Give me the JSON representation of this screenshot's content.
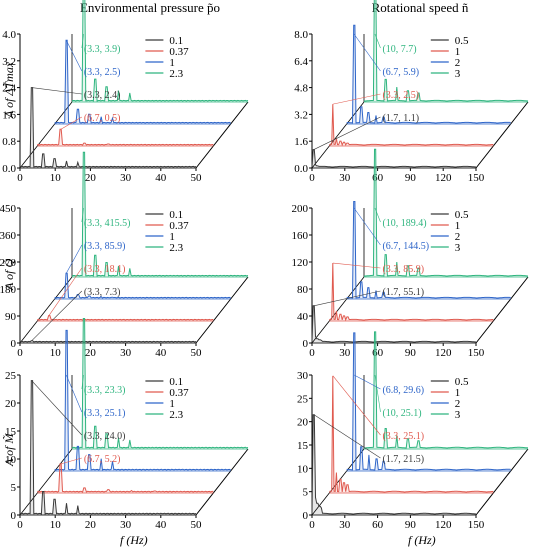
{
  "columns": [
    {
      "title": "Environmental pressure p̃o"
    },
    {
      "title": "Rotational speed ñ"
    }
  ],
  "row_ylabels": [
    "A of ΔT̃max",
    "A of Q̃",
    "A of M̃"
  ],
  "xlabel": "f (Hz)",
  "colors": {
    "s1": "#3a3a3a",
    "s2": "#e05a4f",
    "s3": "#2f66c9",
    "s4": "#2fb57f"
  },
  "chart_data": [
    {
      "type": "line",
      "panel": "a1",
      "xlim": [
        0,
        50
      ],
      "ylim": [
        0,
        4.0
      ],
      "xticks": [
        0,
        10,
        20,
        30,
        40,
        50
      ],
      "yticks": [
        0.0,
        0.8,
        1.6,
        2.4,
        3.2,
        4.0
      ],
      "ytick_labels": [
        "0.0",
        "0.8",
        "1.6",
        "2.4",
        "3.2",
        "4.0"
      ],
      "series": [
        {
          "name": "0.1",
          "peak_x": 3.3,
          "peak_y": 2.4
        },
        {
          "name": "0.37",
          "peak_x": 6.7,
          "peak_y": 0.5
        },
        {
          "name": "1",
          "peak_x": 3.3,
          "peak_y": 2.5
        },
        {
          "name": "2.3",
          "peak_x": 3.3,
          "peak_y": 3.9
        }
      ],
      "annotations": [
        {
          "text": "(3.3, 3.9)",
          "series": 3
        },
        {
          "text": "(3.3, 2.5)",
          "series": 2
        },
        {
          "text": "(3.3, 2.4)",
          "series": 0
        },
        {
          "text": "(6.7, 0.5)",
          "series": 1
        }
      ]
    },
    {
      "type": "line",
      "panel": "b1",
      "xlim": [
        0,
        150
      ],
      "ylim": [
        0,
        8.0
      ],
      "xticks": [
        0,
        30,
        60,
        90,
        120,
        150
      ],
      "yticks": [
        0.0,
        1.6,
        3.2,
        4.8,
        6.4,
        8.0
      ],
      "ytick_labels": [
        "0.0",
        "1.6",
        "3.2",
        "4.8",
        "6.4",
        "8.0"
      ],
      "series": [
        {
          "name": "0.5",
          "peak_x": 1.7,
          "peak_y": 1.1
        },
        {
          "name": "1",
          "peak_x": 3.3,
          "peak_y": 2.5
        },
        {
          "name": "2",
          "peak_x": 6.7,
          "peak_y": 5.9
        },
        {
          "name": "3",
          "peak_x": 10,
          "peak_y": 7.7
        }
      ],
      "annotations": [
        {
          "text": "(10, 7.7)",
          "series": 3
        },
        {
          "text": "(6.7, 5.9)",
          "series": 2
        },
        {
          "text": "(3.3, 2.5)",
          "series": 1
        },
        {
          "text": "(1.7, 1.1)",
          "series": 0
        }
      ]
    },
    {
      "type": "line",
      "panel": "a2",
      "xlim": [
        0,
        50
      ],
      "ylim": [
        0,
        450
      ],
      "xticks": [
        0,
        10,
        20,
        30,
        40,
        50
      ],
      "yticks": [
        0,
        90,
        180,
        270,
        360,
        450
      ],
      "ytick_labels": [
        "0",
        "90",
        "180",
        "270",
        "360",
        "450"
      ],
      "series": [
        {
          "name": "0.1",
          "peak_x": 3.3,
          "peak_y": 7.3
        },
        {
          "name": "0.37",
          "peak_x": 3.3,
          "peak_y": 18.1
        },
        {
          "name": "1",
          "peak_x": 3.3,
          "peak_y": 85.9
        },
        {
          "name": "2.3",
          "peak_x": 3.3,
          "peak_y": 415.5
        }
      ],
      "annotations": [
        {
          "text": "(3.3, 415.5)",
          "series": 3
        },
        {
          "text": "(3.3, 85.9)",
          "series": 2
        },
        {
          "text": "(3.3, 18.1)",
          "series": 1
        },
        {
          "text": "(3.3, 7.3)",
          "series": 0
        }
      ]
    },
    {
      "type": "line",
      "panel": "b2",
      "xlim": [
        0,
        150
      ],
      "ylim": [
        0,
        200
      ],
      "xticks": [
        0,
        30,
        60,
        90,
        120,
        150
      ],
      "yticks": [
        0,
        40,
        80,
        120,
        160,
        200
      ],
      "ytick_labels": [
        "0",
        "40",
        "80",
        "120",
        "160",
        "200"
      ],
      "series": [
        {
          "name": "0.5",
          "peak_x": 1.7,
          "peak_y": 55.1
        },
        {
          "name": "1",
          "peak_x": 3.3,
          "peak_y": 85.9
        },
        {
          "name": "2",
          "peak_x": 6.7,
          "peak_y": 144.5
        },
        {
          "name": "3",
          "peak_x": 10,
          "peak_y": 189.4
        }
      ],
      "annotations": [
        {
          "text": "(10, 189.4)",
          "series": 3
        },
        {
          "text": "(6.7, 144.5)",
          "series": 2
        },
        {
          "text": "(3.3, 85.9)",
          "series": 1
        },
        {
          "text": "(1.7, 55.1)",
          "series": 0
        }
      ]
    },
    {
      "type": "line",
      "panel": "a3",
      "xlim": [
        0,
        50
      ],
      "ylim": [
        0,
        25
      ],
      "xticks": [
        0,
        10,
        20,
        30,
        40,
        50
      ],
      "yticks": [
        0,
        5,
        10,
        15,
        20,
        25
      ],
      "ytick_labels": [
        "0",
        "5",
        "10",
        "15",
        "20",
        "25"
      ],
      "series": [
        {
          "name": "0.1",
          "peak_x": 3.3,
          "peak_y": 24.0
        },
        {
          "name": "0.37",
          "peak_x": 6.7,
          "peak_y": 5.2
        },
        {
          "name": "1",
          "peak_x": 3.3,
          "peak_y": 25.1
        },
        {
          "name": "2.3",
          "peak_x": 3.3,
          "peak_y": 23.3
        }
      ],
      "annotations": [
        {
          "text": "(3.3, 23.3)",
          "series": 3
        },
        {
          "text": "(3.3, 25.1)",
          "series": 2
        },
        {
          "text": "(3.3, 24.0)",
          "series": 0
        },
        {
          "text": "(6.7, 5.2)",
          "series": 1
        }
      ]
    },
    {
      "type": "line",
      "panel": "b3",
      "xlim": [
        0,
        150
      ],
      "ylim": [
        0,
        30
      ],
      "xticks": [
        0,
        30,
        60,
        90,
        120,
        150
      ],
      "yticks": [
        0,
        5,
        10,
        15,
        20,
        25,
        30
      ],
      "ytick_labels": [
        "0",
        "5",
        "10",
        "15",
        "20",
        "25",
        "30"
      ],
      "series": [
        {
          "name": "0.5",
          "peak_x": 1.7,
          "peak_y": 21.5
        },
        {
          "name": "1",
          "peak_x": 3.3,
          "peak_y": 25.1
        },
        {
          "name": "2",
          "peak_x": 6.8,
          "peak_y": 29.6
        },
        {
          "name": "3",
          "peak_x": 10,
          "peak_y": 25.1
        }
      ],
      "annotations": [
        {
          "text": "(6.8, 29.6)",
          "series": 2
        },
        {
          "text": "(10, 25.1)",
          "series": 3
        },
        {
          "text": "(3.3, 25.1)",
          "series": 1
        },
        {
          "text": "(1.7, 21.5)",
          "series": 0
        }
      ]
    }
  ]
}
